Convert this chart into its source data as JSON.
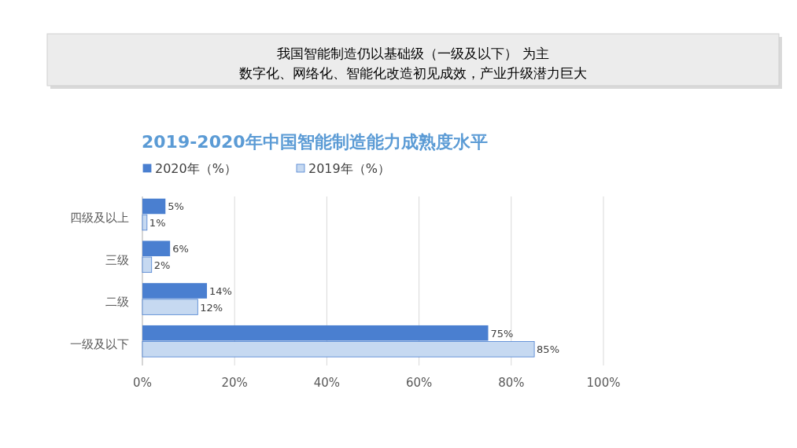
{
  "chart_data": {
    "type": "bar",
    "orientation": "horizontal",
    "title": "2019-2020年中国智能制造能力成熟度水平",
    "annotations": [
      "我国智能制造仍以基础级（一级及以下） 为主",
      "数字化、网络化、智能化改造初见成效，产业升级潜力巨大"
    ],
    "categories": [
      "四级及以上",
      "三级",
      "二级",
      "一级及以下"
    ],
    "series": [
      {
        "name": "2020年（%）",
        "color": "#4a7fd0",
        "values": [
          5,
          6,
          14,
          75
        ],
        "value_labels": [
          "5%",
          "6%",
          "14%",
          "75%"
        ]
      },
      {
        "name": "2019年（%）",
        "color": "#c6d9f1",
        "values": [
          1,
          2,
          12,
          85
        ],
        "value_labels": [
          "1%",
          "2%",
          "12%",
          "85%"
        ]
      }
    ],
    "xlim": [
      0,
      100
    ],
    "xticks": [
      {
        "value": 0,
        "label": "0%"
      },
      {
        "value": 20,
        "label": "20%"
      },
      {
        "value": 40,
        "label": "40%"
      },
      {
        "value": 60,
        "label": "60%"
      },
      {
        "value": 80,
        "label": "80%"
      },
      {
        "value": 100,
        "label": "100%"
      }
    ],
    "grid": "x",
    "legend": "top left"
  }
}
